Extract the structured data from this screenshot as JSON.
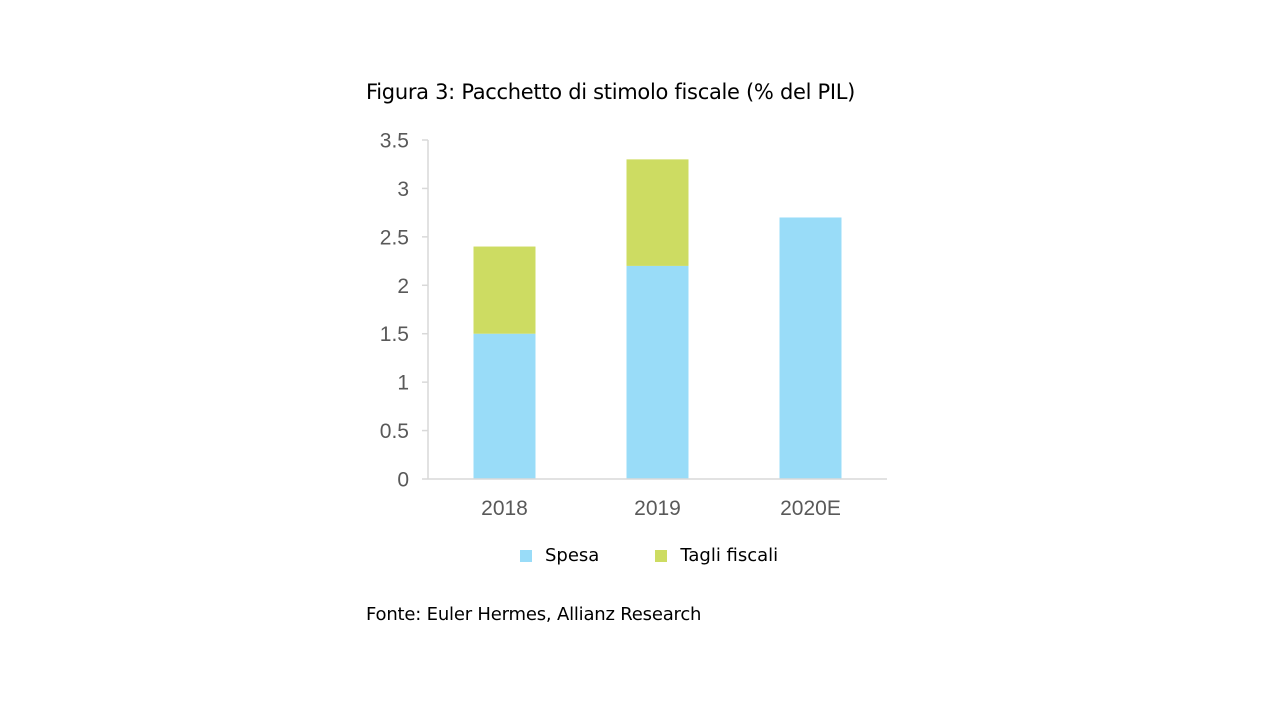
{
  "title": "Figura 3: Pacchetto di stimolo fiscale (% del PIL)",
  "source": "Fonte: Euler Hermes, Allianz Research",
  "colors": {
    "spesa": "#99DCF8",
    "tagli_fiscali": "#CDDC62",
    "axis": "#D9D9D9"
  },
  "chart_data": {
    "type": "bar",
    "stacked": true,
    "categories": [
      "2018",
      "2019",
      "2020E"
    ],
    "series": [
      {
        "name": "Spesa",
        "values": [
          1.5,
          2.2,
          2.7
        ]
      },
      {
        "name": "Tagli fiscali",
        "values": [
          0.9,
          1.1,
          0
        ]
      }
    ],
    "yticks": [
      "0",
      "0.5",
      "1",
      "1.5",
      "2",
      "2.5",
      "3",
      "3.5"
    ],
    "ylim": [
      0,
      3.5
    ],
    "grid": false,
    "legend_position": "bottom"
  }
}
